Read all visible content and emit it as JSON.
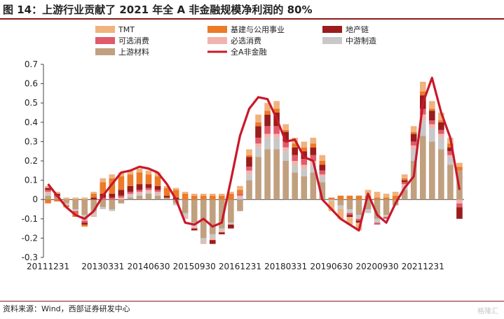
{
  "title": "图 14：上游行业贡献了 2021 年全 A 非金融规模净利润的 80%",
  "source": "资料来源：Wind，西部证券研发中心",
  "watermark": "格隆汇",
  "colors": {
    "TMT": "#f0b27e",
    "基建与公用事业": "#ec7a27",
    "地产链": "#9b1c1c",
    "可选消费": "#e05a6b",
    "必选消费": "#f2b3ad",
    "中游制造": "#c8c8c8",
    "上游材料": "#c1a07f",
    "line": "#c8192a"
  },
  "chart_data": {
    "type": "bar",
    "stacked": true,
    "ylim": [
      -0.3,
      0.7
    ],
    "yticks": [
      -0.3,
      -0.2,
      -0.1,
      0,
      0.1,
      0.2,
      0.3,
      0.4,
      0.5,
      0.6,
      0.7
    ],
    "ytick_labels": [
      "-0.3",
      "-0.2",
      "-0.1",
      "0",
      "0.1",
      "0.2",
      "0.3",
      "0.4",
      "0.5",
      "0.6",
      "0.7"
    ],
    "xtick_labels": [
      {
        "index": 0,
        "label": "20111231"
      },
      {
        "index": 6,
        "label": "20130331"
      },
      {
        "index": 11,
        "label": "20140630"
      },
      {
        "index": 16,
        "label": "20150930"
      },
      {
        "index": 21,
        "label": "20161231"
      },
      {
        "index": 26,
        "label": "20180331"
      },
      {
        "index": 31,
        "label": "20190630"
      },
      {
        "index": 36,
        "label": "20200930"
      },
      {
        "index": 41,
        "label": "20211231"
      }
    ],
    "legend": [
      "TMT",
      "基建与公用事业",
      "地产链",
      "可选消费",
      "必选消费",
      "中游制造",
      "上游材料",
      "全A非金融"
    ],
    "series": [
      {
        "name": "上游材料",
        "values": [
          0.02,
          0.01,
          -0.02,
          -0.05,
          -0.08,
          -0.06,
          -0.04,
          -0.05,
          -0.02,
          0.01,
          0.02,
          0.03,
          0.02,
          0.01,
          -0.02,
          -0.07,
          -0.12,
          -0.2,
          -0.18,
          -0.15,
          -0.12,
          -0.06,
          0.1,
          0.22,
          0.26,
          0.26,
          0.2,
          0.14,
          0.12,
          0.14,
          0.09,
          0.0,
          -0.03,
          -0.05,
          -0.08,
          -0.05,
          -0.1,
          -0.08,
          -0.03,
          0.05,
          0.2,
          0.33,
          0.3,
          0.26,
          0.18,
          0.15
        ]
      },
      {
        "name": "中游制造",
        "values": [
          0.01,
          0.0,
          -0.01,
          -0.01,
          -0.02,
          -0.02,
          -0.01,
          -0.01,
          0.0,
          0.01,
          0.01,
          0.01,
          0.01,
          0.0,
          -0.01,
          -0.02,
          -0.02,
          -0.02,
          -0.02,
          -0.01,
          -0.01,
          0.01,
          0.03,
          0.05,
          0.06,
          0.06,
          0.05,
          0.04,
          0.04,
          0.04,
          0.03,
          -0.01,
          -0.02,
          -0.02,
          -0.02,
          -0.02,
          -0.02,
          -0.01,
          0.0,
          0.02,
          0.06,
          0.08,
          0.07,
          0.06,
          0.04,
          0.0
        ]
      },
      {
        "name": "必选消费",
        "values": [
          0.01,
          0.0,
          0.0,
          0.0,
          -0.01,
          -0.01,
          0.0,
          0.0,
          0.01,
          0.01,
          0.01,
          0.01,
          0.01,
          0.0,
          0.0,
          -0.01,
          -0.01,
          -0.01,
          -0.01,
          -0.01,
          0.0,
          0.01,
          0.02,
          0.02,
          0.02,
          0.02,
          0.02,
          0.02,
          0.02,
          0.02,
          0.01,
          0.0,
          0.0,
          0.0,
          0.0,
          0.0,
          0.0,
          0.0,
          0.0,
          0.01,
          0.02,
          0.03,
          0.02,
          0.02,
          0.01,
          -0.02
        ]
      },
      {
        "name": "可选消费",
        "values": [
          0.01,
          0.01,
          0.0,
          -0.01,
          -0.01,
          0.0,
          0.01,
          0.01,
          0.01,
          0.01,
          0.01,
          0.01,
          0.01,
          0.0,
          0.0,
          0.0,
          0.0,
          0.0,
          0.0,
          0.0,
          0.0,
          0.01,
          0.02,
          0.03,
          0.04,
          0.04,
          0.03,
          0.03,
          0.03,
          0.03,
          0.02,
          0.0,
          0.0,
          -0.01,
          -0.01,
          0.0,
          -0.01,
          -0.01,
          0.0,
          0.01,
          0.02,
          0.03,
          0.02,
          0.02,
          0.02,
          -0.02
        ]
      },
      {
        "name": "地产链",
        "values": [
          0.01,
          0.01,
          0.0,
          0.0,
          -0.01,
          0.01,
          0.02,
          0.02,
          0.03,
          0.03,
          0.03,
          0.02,
          0.02,
          0.01,
          0.01,
          0.0,
          -0.01,
          0.0,
          -0.02,
          -0.01,
          -0.02,
          0.0,
          0.05,
          0.06,
          0.06,
          0.07,
          0.05,
          0.04,
          0.04,
          0.04,
          0.03,
          0.0,
          0.0,
          -0.01,
          -0.01,
          0.0,
          0.0,
          0.0,
          0.0,
          0.01,
          0.04,
          0.07,
          0.05,
          0.04,
          0.02,
          -0.06
        ]
      },
      {
        "name": "基建与公用事业",
        "values": [
          -0.02,
          -0.01,
          -0.01,
          -0.02,
          -0.01,
          0.02,
          0.06,
          0.08,
          0.07,
          0.06,
          0.06,
          0.05,
          0.05,
          0.04,
          0.04,
          0.03,
          0.02,
          0.02,
          0.02,
          0.02,
          0.03,
          0.02,
          0.01,
          0.02,
          0.02,
          0.02,
          0.01,
          0.02,
          0.02,
          0.02,
          0.02,
          0.01,
          0.02,
          0.02,
          0.02,
          0.02,
          0.01,
          0.01,
          0.02,
          0.01,
          0.01,
          0.02,
          0.01,
          0.01,
          0.02,
          0.02
        ]
      },
      {
        "name": "TMT",
        "values": [
          0.01,
          0.01,
          0.01,
          0.01,
          0.01,
          0.01,
          0.02,
          0.02,
          0.02,
          0.02,
          0.02,
          0.02,
          0.02,
          0.01,
          0.01,
          0.01,
          0.01,
          0.01,
          0.01,
          0.01,
          0.01,
          0.02,
          0.03,
          0.04,
          0.04,
          0.04,
          0.03,
          0.03,
          0.03,
          0.03,
          0.03,
          -0.05,
          -0.05,
          -0.04,
          -0.04,
          0.03,
          0.03,
          0.02,
          0.02,
          0.02,
          0.03,
          0.05,
          0.04,
          0.04,
          0.03,
          0.02
        ]
      },
      {
        "name": "全A非金融",
        "type": "line",
        "values": [
          0.08,
          0.02,
          -0.04,
          -0.08,
          -0.1,
          -0.06,
          0.02,
          0.08,
          0.14,
          0.15,
          0.17,
          0.16,
          0.14,
          0.08,
          0.0,
          -0.12,
          -0.13,
          -0.1,
          -0.14,
          -0.12,
          0.1,
          0.33,
          0.47,
          0.53,
          0.52,
          0.42,
          0.3,
          0.31,
          0.22,
          0.2,
          0.0,
          -0.05,
          -0.1,
          -0.13,
          -0.16,
          0.03,
          -0.08,
          -0.12,
          -0.02,
          0.06,
          0.12,
          0.5,
          0.63,
          0.45,
          0.32,
          0.05
        ]
      }
    ]
  }
}
